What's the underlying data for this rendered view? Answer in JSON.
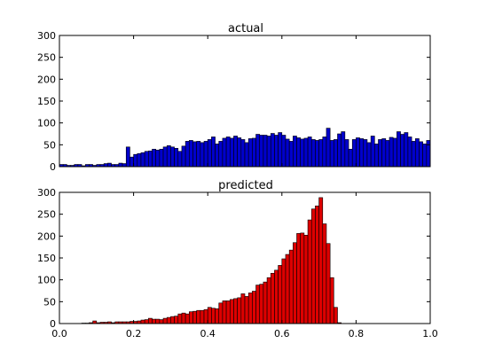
{
  "chart_data": [
    {
      "type": "bar",
      "title": "actual",
      "xlabel": "",
      "ylabel": "",
      "xlim": [
        0.0,
        1.0
      ],
      "ylim": [
        0,
        300
      ],
      "yticks": [
        "0",
        "50",
        "100",
        "150",
        "200",
        "250",
        "300"
      ],
      "xticks": [],
      "bin_start": 0.0,
      "bin_width": 0.01,
      "color": "#0000cc",
      "grid": false,
      "values": [
        5,
        5,
        3,
        3,
        5,
        5,
        2,
        5,
        5,
        3,
        5,
        5,
        7,
        8,
        5,
        5,
        8,
        7,
        45,
        22,
        28,
        30,
        32,
        35,
        36,
        40,
        38,
        40,
        45,
        48,
        45,
        42,
        35,
        47,
        58,
        60,
        57,
        58,
        55,
        58,
        62,
        68,
        52,
        58,
        65,
        68,
        65,
        70,
        66,
        62,
        55,
        64,
        65,
        74,
        72,
        72,
        70,
        76,
        72,
        78,
        72,
        63,
        58,
        70,
        66,
        63,
        65,
        68,
        62,
        60,
        62,
        68,
        88,
        60,
        62,
        75,
        80,
        62,
        40,
        62,
        66,
        64,
        62,
        55,
        70,
        52,
        62,
        64,
        60,
        67,
        65,
        80,
        74,
        78,
        68,
        58,
        64,
        57,
        52,
        60
      ]
    },
    {
      "type": "bar",
      "title": "predicted",
      "xlabel": "",
      "ylabel": "",
      "xlim": [
        0.0,
        1.0
      ],
      "ylim": [
        0,
        300
      ],
      "yticks": [
        "0",
        "50",
        "100",
        "150",
        "200",
        "250",
        "300"
      ],
      "xticks": [
        "0.0",
        "0.2",
        "0.4",
        "0.6",
        "0.8",
        "1.0"
      ],
      "bin_start": 0.0,
      "bin_width": 0.01,
      "color": "#dd0000",
      "grid": false,
      "values": [
        0,
        0,
        0,
        0,
        0,
        0,
        1,
        1,
        2,
        6,
        2,
        3,
        3,
        4,
        2,
        4,
        4,
        4,
        4,
        5,
        5,
        6,
        8,
        9,
        12,
        10,
        10,
        9,
        12,
        14,
        16,
        17,
        22,
        24,
        22,
        27,
        28,
        30,
        30,
        32,
        37,
        35,
        34,
        47,
        52,
        52,
        55,
        57,
        59,
        68,
        62,
        70,
        74,
        88,
        90,
        95,
        105,
        115,
        122,
        133,
        148,
        158,
        168,
        185,
        206,
        207,
        202,
        237,
        262,
        269,
        288,
        228,
        183,
        105,
        37,
        2,
        0,
        0,
        0,
        0,
        0,
        0,
        0,
        0,
        0,
        0,
        0,
        0,
        0,
        0,
        0,
        0,
        0,
        0,
        0,
        0,
        0,
        0,
        0,
        0
      ]
    }
  ]
}
